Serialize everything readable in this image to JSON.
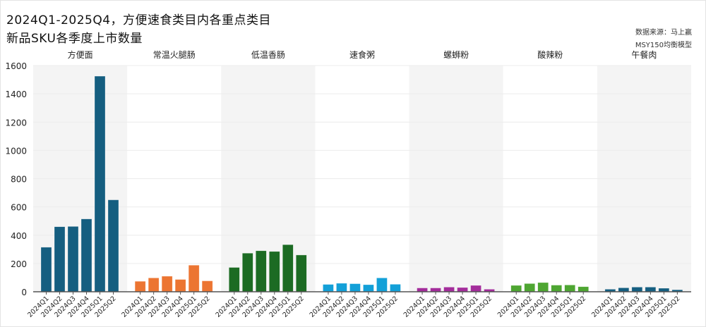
{
  "title_line1": "2024Q1-2025Q4，方便速食类目内各重点类目",
  "title_line2": "新品SKU各季度上市数量",
  "source_line1": "数据来源：马上赢",
  "source_line2": "MSY150均衡模型",
  "chart_data": {
    "type": "bar",
    "title": "2024Q1-2025Q4，方便速食类目内各重点类目新品SKU各季度上市数量",
    "xlabel": "",
    "ylabel": "",
    "ylim": [
      0,
      1600
    ],
    "yticks": [
      0,
      200,
      400,
      600,
      800,
      1000,
      1200,
      1400,
      1600
    ],
    "grid": true,
    "categories": [
      "2024Q1",
      "2024Q2",
      "2024Q3",
      "2024Q4",
      "2025Q1",
      "2025Q2"
    ],
    "panels": [
      {
        "name": "方便面",
        "color": "#155e80",
        "values": [
          315,
          460,
          462,
          515,
          1525,
          650
        ]
      },
      {
        "name": "常温火腿肠",
        "color": "#ec7532",
        "values": [
          74,
          98,
          110,
          87,
          188,
          77
        ]
      },
      {
        "name": "低温香肠",
        "color": "#1c6b23",
        "values": [
          172,
          273,
          290,
          285,
          333,
          260
        ]
      },
      {
        "name": "速食粥",
        "color": "#13a0d8",
        "values": [
          52,
          60,
          57,
          50,
          98,
          53
        ]
      },
      {
        "name": "螺蛳粉",
        "color": "#a32d9b",
        "values": [
          27,
          27,
          33,
          30,
          45,
          18
        ]
      },
      {
        "name": "酸辣粉",
        "color": "#4ea632",
        "values": [
          45,
          58,
          65,
          47,
          48,
          36
        ]
      },
      {
        "name": "午餐肉",
        "color": "#155e80",
        "values": [
          18,
          28,
          33,
          33,
          25,
          14
        ]
      }
    ]
  }
}
